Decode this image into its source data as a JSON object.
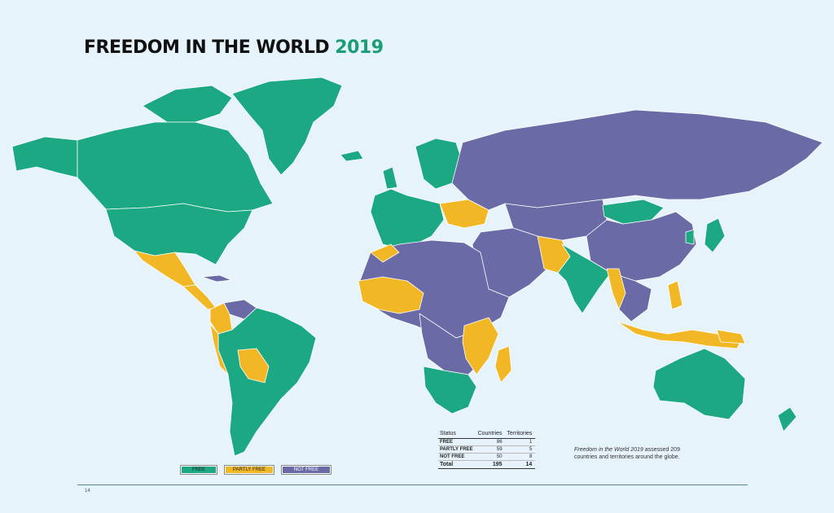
{
  "title": {
    "main": "FREEDOM IN THE WORLD",
    "year": "2019"
  },
  "colors": {
    "free": "#1ba883",
    "partly_free": "#f2b724",
    "not_free": "#6a6aa6",
    "ocean": "#e6f3fb",
    "title_accent": "#1a9e78"
  },
  "legend": [
    {
      "label": "FREE",
      "status": "free"
    },
    {
      "label": "PARTLY FREE",
      "status": "partly_free"
    },
    {
      "label": "NOT FREE",
      "status": "not_free"
    }
  ],
  "status_table": {
    "headers": [
      "Status",
      "Countries",
      "Territories"
    ],
    "rows": [
      {
        "status": "FREE",
        "countries": "86",
        "territories": "1"
      },
      {
        "status": "PARTLY FREE",
        "countries": "59",
        "territories": "5"
      },
      {
        "status": "NOT FREE",
        "countries": "50",
        "territories": "8"
      }
    ],
    "total": {
      "label": "Total",
      "countries": "195",
      "territories": "14"
    }
  },
  "note": {
    "italic": "Freedom in the World 2019",
    "rest": " assessed 209 countries and territories around the globe."
  },
  "page_number": "14"
}
